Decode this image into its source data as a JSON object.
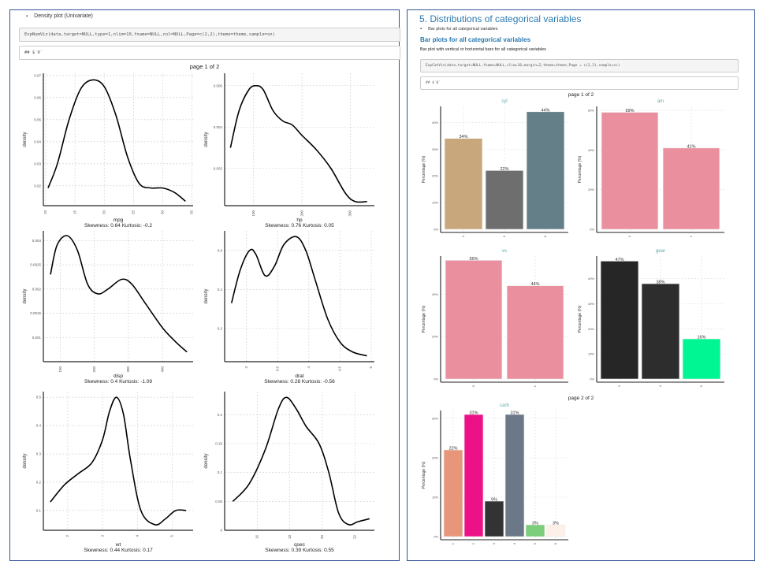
{
  "left": {
    "bullet": "Density plot (Univariate)",
    "code": "ExpNumViz(data,target=NULL,type=1,nlim=10,fname=NULL,col=NULL,Page=c(2,2),theme=theme,sample=sn)",
    "output": "## $`0`",
    "page_label": "page 1 of 2"
  },
  "right": {
    "title": "5. Distributions of categorical variables",
    "bullet": "Bar plots for all categorical variables",
    "heading": "Bar plots for all categorical variables",
    "description": "Bar plot with vertical or horizontal bars for all categorical variables",
    "code": "ExpCatViz(data,target=NULL,fname=NULL,clim=10,margin=2,theme=theme,Page = c(2,2),sample=sc)",
    "output": "## $`0`",
    "page1_label": "page 1 of 2",
    "page2_label": "page 2 of 2"
  },
  "colors": {
    "accent": "#2a7ab0",
    "title_teal": "#5ba8a8",
    "border": "#2f5496"
  },
  "chart_data": [
    {
      "type": "line",
      "id": "mpg",
      "xlabel": "mpg",
      "ylabel": "density",
      "subtitle": "Skewness: 0.64 Kurtosis: -0.2",
      "xlim": [
        9.6,
        35.2
      ],
      "ylim": [
        0.011,
        0.071
      ],
      "xticks": [
        10,
        15,
        20,
        25,
        30,
        35
      ],
      "yticks": [
        0.02,
        0.03,
        0.04,
        0.05,
        0.06,
        0.07
      ],
      "x": [
        10.4,
        12,
        14,
        16,
        18,
        20,
        22,
        24,
        26,
        28,
        30,
        32,
        33.9
      ],
      "y": [
        0.019,
        0.03,
        0.05,
        0.064,
        0.068,
        0.065,
        0.052,
        0.033,
        0.021,
        0.019,
        0.019,
        0.017,
        0.013
      ]
    },
    {
      "type": "line",
      "id": "hp",
      "xlabel": "hp",
      "ylabel": "density",
      "subtitle": "Skewness: 0.76 Kurtosis: 0.05",
      "xlim": [
        40,
        350
      ],
      "ylim": [
        0.0002,
        0.0066
      ],
      "xticks": [
        100,
        200,
        300
      ],
      "yticks": [
        0.002,
        0.004,
        0.006
      ],
      "x": [
        52,
        70,
        90,
        105,
        120,
        140,
        160,
        180,
        200,
        230,
        260,
        290,
        310,
        335
      ],
      "y": [
        0.003,
        0.0048,
        0.0058,
        0.006,
        0.0058,
        0.0048,
        0.0043,
        0.0041,
        0.0036,
        0.0029,
        0.002,
        0.0008,
        0.0004,
        0.0004
      ]
    },
    {
      "type": "line",
      "id": "disp",
      "xlabel": "disp",
      "ylabel": "density",
      "subtitle": "Skewness: 0.4 Kurtosis: -1.09",
      "xlim": [
        50,
        490
      ],
      "ylim": [
        0.0005,
        0.0032
      ],
      "xticks": [
        100,
        200,
        300,
        400
      ],
      "yticks": [
        0.001,
        0.0015,
        0.002,
        0.0025,
        0.003
      ],
      "x": [
        71,
        90,
        120,
        150,
        180,
        210,
        240,
        280,
        310,
        350,
        400,
        440,
        472
      ],
      "y": [
        0.0023,
        0.0029,
        0.0031,
        0.0028,
        0.0021,
        0.0019,
        0.002,
        0.0022,
        0.0021,
        0.0017,
        0.0012,
        0.0009,
        0.0007
      ]
    },
    {
      "type": "line",
      "id": "drat",
      "xlabel": "drat",
      "ylabel": "density",
      "subtitle": "Skewness: 0.28 Kurtosis: -0.56",
      "xlim": [
        2.65,
        5.05
      ],
      "ylim": [
        0.03,
        0.7
      ],
      "xticks": [
        3.0,
        3.5,
        4.0,
        4.5,
        5.0
      ],
      "yticks": [
        0.2,
        0.4,
        0.6
      ],
      "x": [
        2.76,
        2.9,
        3.05,
        3.15,
        3.3,
        3.45,
        3.6,
        3.8,
        3.95,
        4.1,
        4.3,
        4.5,
        4.7,
        4.93
      ],
      "y": [
        0.33,
        0.5,
        0.6,
        0.58,
        0.47,
        0.52,
        0.63,
        0.67,
        0.6,
        0.45,
        0.25,
        0.13,
        0.08,
        0.06
      ]
    },
    {
      "type": "line",
      "id": "wt",
      "xlabel": "wt",
      "ylabel": "density",
      "subtitle": "Skewness: 0.44 Kurtosis: 0.17",
      "xlim": [
        1.3,
        5.6
      ],
      "ylim": [
        0.03,
        0.52
      ],
      "xticks": [
        2,
        3,
        4,
        5
      ],
      "yticks": [
        0.1,
        0.2,
        0.3,
        0.4,
        0.5
      ],
      "x": [
        1.5,
        1.9,
        2.3,
        2.7,
        3.0,
        3.2,
        3.4,
        3.6,
        3.8,
        4.1,
        4.5,
        4.8,
        5.1,
        5.4
      ],
      "y": [
        0.13,
        0.19,
        0.23,
        0.27,
        0.35,
        0.45,
        0.5,
        0.44,
        0.28,
        0.1,
        0.05,
        0.07,
        0.1,
        0.1
      ]
    },
    {
      "type": "line",
      "id": "qsec",
      "xlabel": "qsec",
      "ylabel": "density",
      "subtitle": "Skewness: 0.39 Kurtosis: 0.55",
      "xlim": [
        14,
        23.2
      ],
      "ylim": [
        0,
        0.24
      ],
      "xticks": [
        16,
        18,
        20,
        22
      ],
      "yticks": [
        0.0,
        0.05,
        0.1,
        0.15,
        0.2
      ],
      "x": [
        14.5,
        15.5,
        16.5,
        17.3,
        17.8,
        18.4,
        19,
        19.8,
        20.4,
        21,
        21.6,
        22.2,
        22.9
      ],
      "y": [
        0.05,
        0.08,
        0.14,
        0.21,
        0.23,
        0.21,
        0.18,
        0.15,
        0.1,
        0.03,
        0.01,
        0.015,
        0.02
      ]
    },
    {
      "type": "bar",
      "id": "cyl",
      "title": "cyl",
      "ylabel": "Percentage (%)",
      "categories": [
        "4",
        "6",
        "8"
      ],
      "values": [
        34,
        22,
        44
      ],
      "labels": [
        "34%",
        "22%",
        "44%"
      ],
      "ylim": [
        0,
        46
      ],
      "yticks": [
        0,
        10,
        20,
        30,
        40
      ],
      "colors": [
        "#c9a77c",
        "#6e6e6e",
        "#657f88"
      ]
    },
    {
      "type": "bar",
      "id": "am",
      "title": "am",
      "ylabel": "Percentage (%)",
      "categories": [
        "0",
        "1"
      ],
      "values": [
        59,
        41
      ],
      "labels": [
        "59%",
        "41%"
      ],
      "ylim": [
        0,
        62
      ],
      "yticks": [
        0,
        20,
        40,
        60
      ],
      "colors": [
        "#ea8f9e",
        "#ea8f9e"
      ]
    },
    {
      "type": "bar",
      "id": "vs",
      "title": "vs",
      "ylabel": "Percentage (%)",
      "categories": [
        "0",
        "1"
      ],
      "values": [
        56,
        44
      ],
      "labels": [
        "56%",
        "44%"
      ],
      "ylim": [
        0,
        58
      ],
      "yticks": [
        0,
        20,
        40
      ],
      "colors": [
        "#ea8f9e",
        "#ea8f9e"
      ]
    },
    {
      "type": "bar",
      "id": "gear",
      "title": "gear",
      "ylabel": "Percentage (%)",
      "categories": [
        "3",
        "4",
        "5"
      ],
      "values": [
        47,
        38,
        16
      ],
      "labels": [
        "47%",
        "38%",
        "16%"
      ],
      "ylim": [
        0,
        49
      ],
      "yticks": [
        0,
        10,
        20,
        30,
        40
      ],
      "colors": [
        "#262626",
        "#2d2d2d",
        "#00f593"
      ]
    },
    {
      "type": "bar",
      "id": "carb",
      "title": "carb",
      "ylabel": "Percentage (%)",
      "categories": [
        "1",
        "2",
        "3",
        "4",
        "6",
        "8"
      ],
      "values": [
        22,
        31,
        9,
        31,
        3,
        3
      ],
      "labels": [
        "22%",
        "31%",
        "9%",
        "31%",
        "3%",
        "3%"
      ],
      "ylim": [
        0,
        32
      ],
      "yticks": [
        0,
        10,
        20,
        30
      ],
      "colors": [
        "#e8967a",
        "#ed1188",
        "#333333",
        "#6b7888",
        "#7ccd7c",
        "#fdf0e8"
      ]
    }
  ]
}
